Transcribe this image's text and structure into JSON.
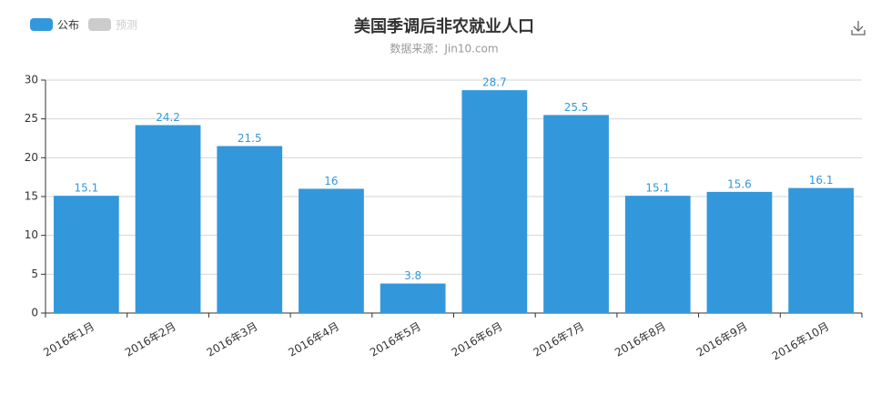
{
  "chart_data": {
    "type": "bar",
    "title": "美国季调后非农就业人口",
    "subtitle": "数据来源：Jin10.com",
    "categories": [
      "2016年1月",
      "2016年2月",
      "2016年3月",
      "2016年4月",
      "2016年5月",
      "2016年6月",
      "2016年7月",
      "2016年8月",
      "2016年9月",
      "2016年10月"
    ],
    "series": [
      {
        "name": "公布",
        "color": "#3398db",
        "values": [
          15.1,
          24.2,
          21.5,
          16,
          3.8,
          28.7,
          25.5,
          15.1,
          15.6,
          16.1
        ]
      },
      {
        "name": "预测",
        "color": "#cccccc",
        "values": [
          null,
          null,
          null,
          null,
          null,
          null,
          null,
          null,
          null,
          null
        ]
      }
    ],
    "ylim": [
      0,
      30
    ],
    "yticks": [
      0,
      5,
      10,
      15,
      20,
      25,
      30
    ],
    "grid": true
  }
}
